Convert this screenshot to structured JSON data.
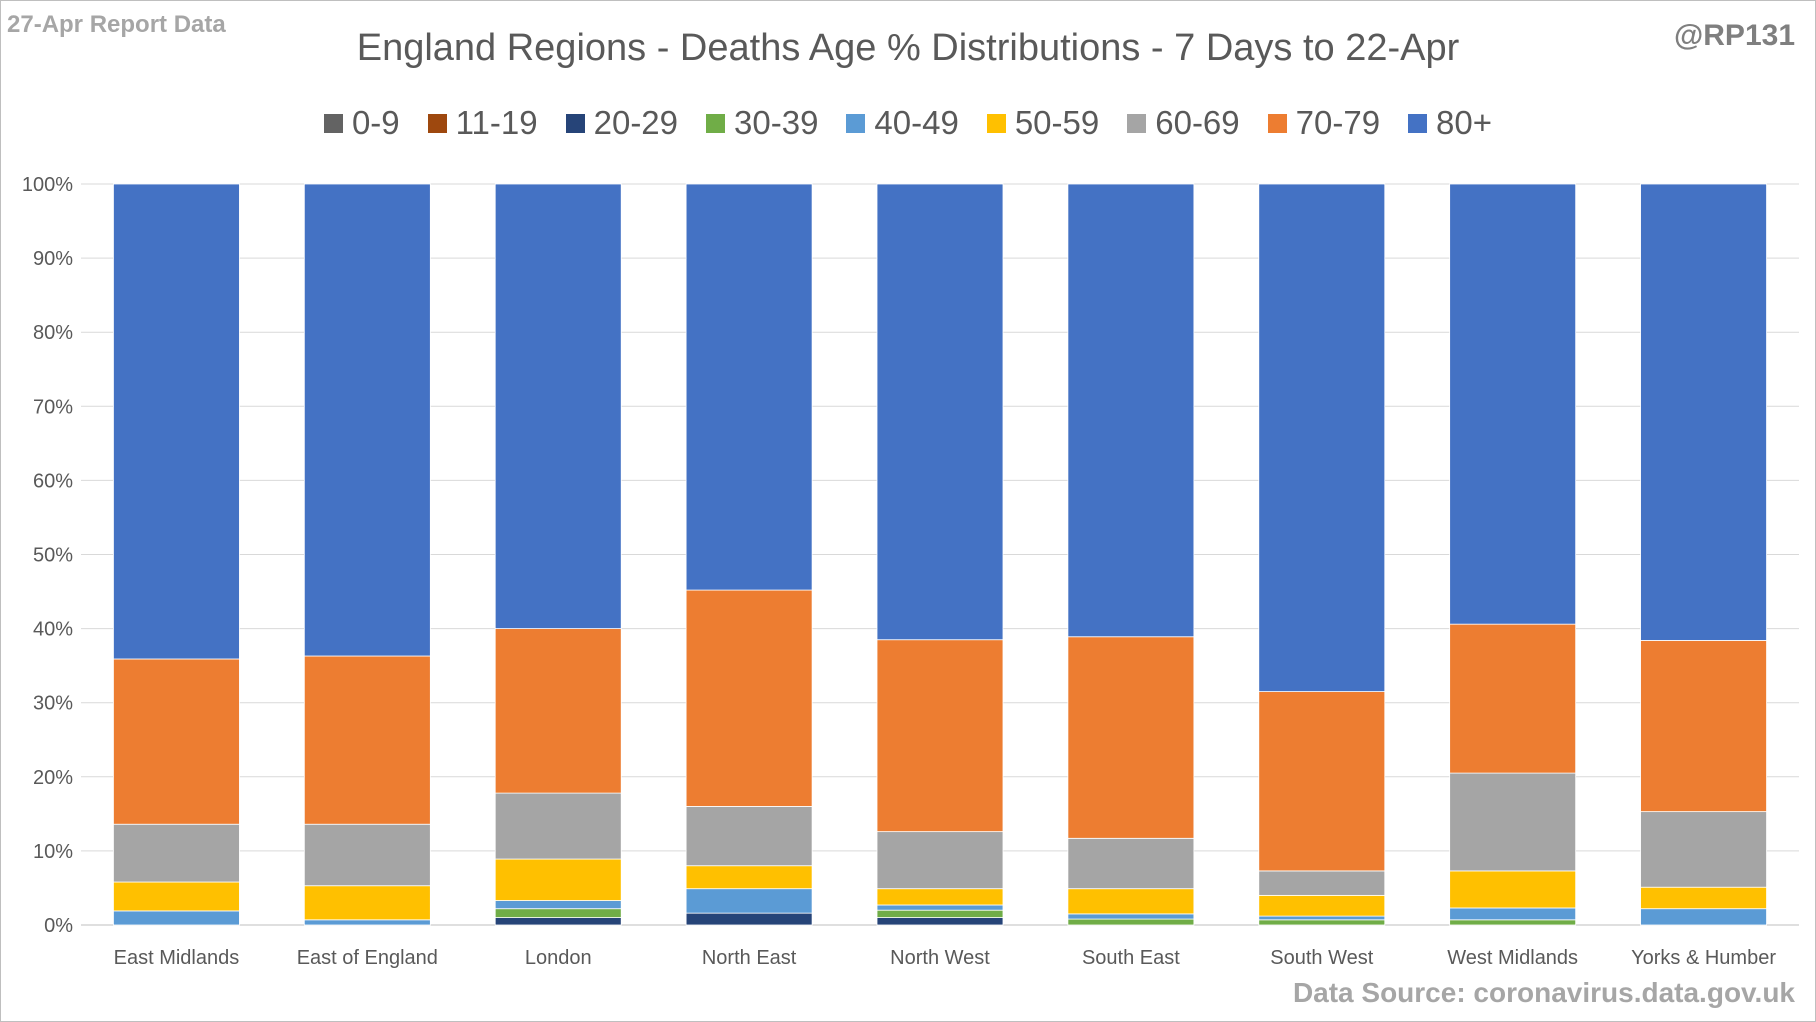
{
  "header": {
    "report_label": "27-Apr Report Data",
    "handle": "@RP131",
    "source": "Data Source: coronavirus.data.gov.uk"
  },
  "chart_data": {
    "type": "bar",
    "stacked": true,
    "title": "England Regions - Deaths Age % Distributions - 7 Days to 22-Apr",
    "xlabel": "",
    "ylabel": "",
    "ylim": [
      0,
      100
    ],
    "y_ticks": [
      "0%",
      "10%",
      "20%",
      "30%",
      "40%",
      "50%",
      "60%",
      "70%",
      "80%",
      "90%",
      "100%"
    ],
    "grid": true,
    "legend_position": "top",
    "categories": [
      "East Midlands",
      "East of England",
      "London",
      "North East",
      "North West",
      "South East",
      "South West",
      "West Midlands",
      "Yorks & Humber"
    ],
    "series": [
      {
        "name": "0-9",
        "color": "#636363",
        "values": [
          0,
          0,
          0,
          0,
          0,
          0,
          0,
          0,
          0
        ]
      },
      {
        "name": "11-19",
        "color": "#9e480e",
        "values": [
          0,
          0,
          0,
          0,
          0,
          0,
          0,
          0,
          0
        ]
      },
      {
        "name": "20-29",
        "color": "#264478",
        "values": [
          0,
          0,
          1.0,
          1.6,
          1.0,
          0,
          0,
          0,
          0
        ]
      },
      {
        "name": "30-39",
        "color": "#70ad47",
        "values": [
          0,
          0,
          1.2,
          0,
          1.0,
          0.8,
          0.7,
          0.7,
          0
        ]
      },
      {
        "name": "40-49",
        "color": "#5b9bd5",
        "values": [
          1.9,
          0.7,
          1.1,
          3.3,
          0.7,
          0.7,
          0.5,
          1.6,
          2.2
        ]
      },
      {
        "name": "50-59",
        "color": "#ffc000",
        "values": [
          3.9,
          4.6,
          5.6,
          3.1,
          2.2,
          3.4,
          2.8,
          5.0,
          2.9
        ]
      },
      {
        "name": "60-69",
        "color": "#a5a5a5",
        "values": [
          7.8,
          8.3,
          8.9,
          8.0,
          7.7,
          6.8,
          3.3,
          13.2,
          10.2
        ]
      },
      {
        "name": "70-79",
        "color": "#ed7d31",
        "values": [
          22.3,
          22.7,
          22.2,
          29.2,
          25.9,
          27.2,
          24.2,
          20.1,
          23.1
        ]
      },
      {
        "name": "80+",
        "color": "#4472c4",
        "values": [
          64.1,
          63.7,
          60.0,
          54.8,
          61.5,
          61.1,
          68.5,
          59.4,
          61.6
        ]
      }
    ]
  }
}
